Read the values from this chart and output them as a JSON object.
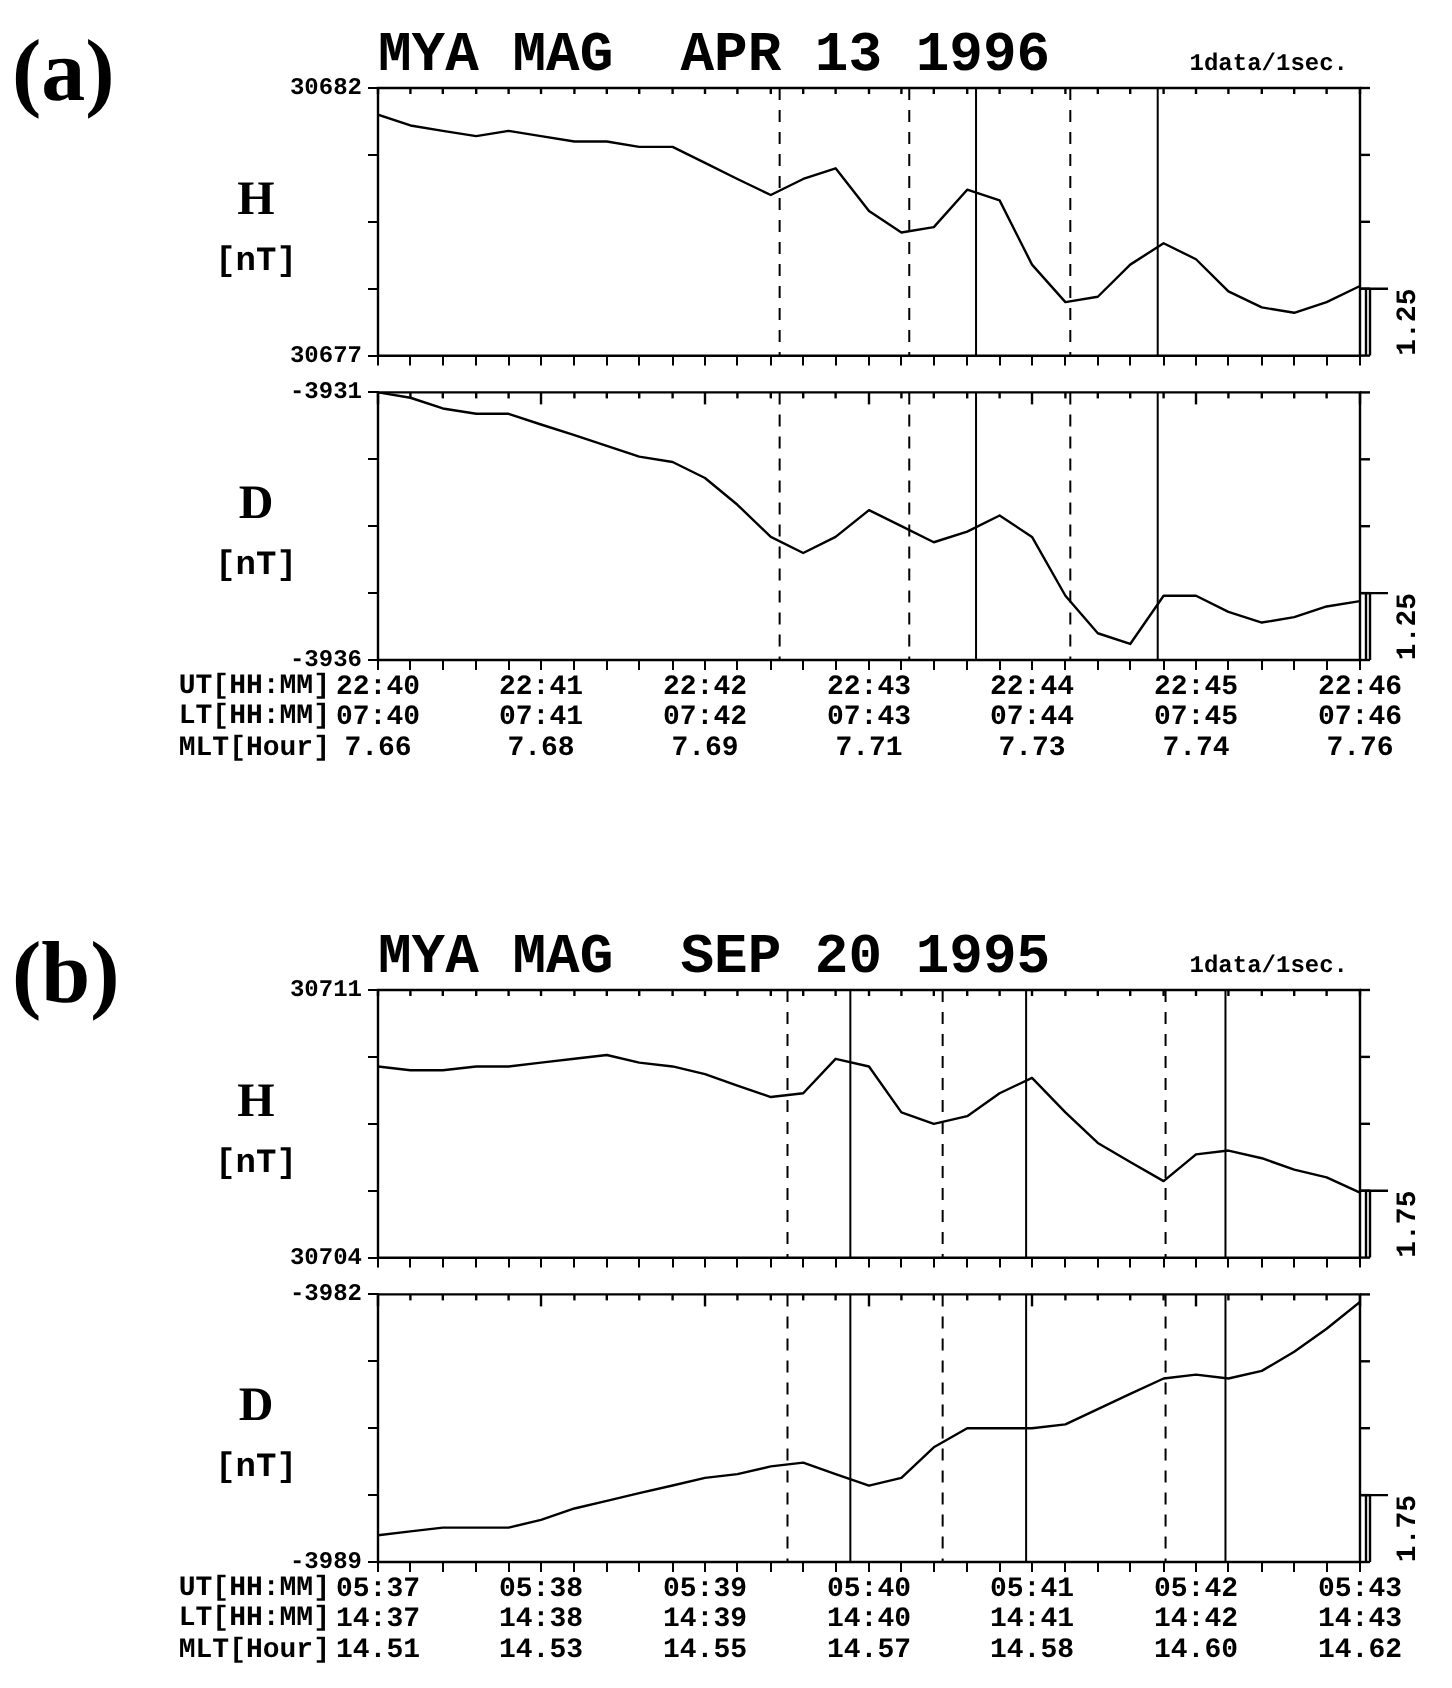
{
  "chart_data": [
    {
      "type": "line",
      "title": "MYA MAG  APR 13 1996",
      "subtitle": "1data/1sec.",
      "ylabel": "H [nT]",
      "annotations": [
        "(a)",
        "1.25"
      ],
      "color": "#000000",
      "tick_labels": "y",
      "x": [
        22.6667,
        22.67,
        22.6733,
        22.6767,
        22.68,
        22.6833,
        22.6867,
        22.69,
        22.6933,
        22.6967,
        22.7,
        22.7033,
        22.7067,
        22.71,
        22.7133,
        22.7167,
        22.72,
        22.7233,
        22.7267,
        22.73,
        22.7333,
        22.7367,
        22.74,
        22.7433,
        22.7467,
        22.75,
        22.7533,
        22.7567,
        22.76,
        22.7633,
        22.7667
      ],
      "values": [
        30681.5,
        30681.3,
        30681.2,
        30681.1,
        30681.2,
        30681.1,
        30681.0,
        30681.0,
        30680.9,
        30680.9,
        30680.6,
        30680.3,
        30680.0,
        30680.3,
        30680.5,
        30679.7,
        30679.3,
        30679.4,
        30680.1,
        30679.9,
        30678.7,
        30678.0,
        30678.1,
        30678.7,
        30679.1,
        30678.8,
        30678.2,
        30677.9,
        30677.8,
        30678.0,
        30678.3
      ],
      "xlim": [
        22.6667,
        22.7667
      ],
      "xticks": [
        {
          "value": 22.6667,
          "label": null
        },
        {
          "value": 22.67,
          "label": null
        },
        {
          "value": 22.6733,
          "label": null
        },
        {
          "value": 22.6767,
          "label": null
        },
        {
          "value": 22.68,
          "label": null
        },
        {
          "value": 22.6833,
          "label": null
        },
        {
          "value": 22.6867,
          "label": null
        },
        {
          "value": 22.69,
          "label": null
        },
        {
          "value": 22.6933,
          "label": null
        },
        {
          "value": 22.6967,
          "label": null
        },
        {
          "value": 22.7,
          "label": null
        },
        {
          "value": 22.7033,
          "label": null
        },
        {
          "value": 22.7067,
          "label": null
        },
        {
          "value": 22.71,
          "label": null
        },
        {
          "value": 22.7133,
          "label": null
        },
        {
          "value": 22.7167,
          "label": null
        },
        {
          "value": 22.72,
          "label": null
        },
        {
          "value": 22.7233,
          "label": null
        },
        {
          "value": 22.7267,
          "label": null
        },
        {
          "value": 22.73,
          "label": null
        },
        {
          "value": 22.7333,
          "label": null
        },
        {
          "value": 22.7367,
          "label": null
        },
        {
          "value": 22.74,
          "label": null
        },
        {
          "value": 22.7433,
          "label": null
        },
        {
          "value": 22.7467,
          "label": null
        },
        {
          "value": 22.75,
          "label": null
        },
        {
          "value": 22.7533,
          "label": null
        },
        {
          "value": 22.7567,
          "label": null
        },
        {
          "value": 22.76,
          "label": null
        },
        {
          "value": 22.7633,
          "label": null
        },
        {
          "value": 22.7667,
          "label": null
        }
      ],
      "ylim": [
        30677,
        30682
      ],
      "yticks": [
        30677,
        {
          "value": 30678.25,
          "label": null
        },
        {
          "value": 30679.5,
          "label": null
        },
        {
          "value": 30680.75,
          "label": null
        },
        30682
      ],
      "ref_lines": [
        {
          "axis": "x",
          "value": 22.7076,
          "line_style": "dashed"
        },
        {
          "axis": "x",
          "value": 22.7208,
          "line_style": "dashed"
        },
        {
          "axis": "x",
          "value": 22.7276,
          "line_style": "solid"
        },
        {
          "axis": "x",
          "value": 22.7372,
          "line_style": "dashed"
        },
        {
          "axis": "x",
          "value": 22.7461,
          "line_style": "solid"
        }
      ]
    },
    {
      "type": "line",
      "ylabel": "D [nT]",
      "xlabel": "UT[HH:MM]",
      "x2label": "LT[HH:MM]",
      "color": "#000000",
      "annotations": [
        "MLT[Hour]",
        "7.66",
        "7.68",
        "7.69",
        "7.71",
        "7.73",
        "7.74",
        "7.76",
        "1.25"
      ],
      "x": [
        22.6667,
        22.67,
        22.6733,
        22.6767,
        22.68,
        22.6833,
        22.6867,
        22.69,
        22.6933,
        22.6967,
        22.7,
        22.7033,
        22.7067,
        22.71,
        22.7133,
        22.7167,
        22.72,
        22.7233,
        22.7267,
        22.73,
        22.7333,
        22.7367,
        22.74,
        22.7433,
        22.7467,
        22.75,
        22.7533,
        22.7567,
        22.76,
        22.7633,
        22.7667
      ],
      "values": [
        -3931.0,
        -3931.1,
        -3931.3,
        -3931.4,
        -3931.4,
        -3931.6,
        -3931.8,
        -3932.0,
        -3932.2,
        -3932.3,
        -3932.6,
        -3933.1,
        -3933.7,
        -3934.0,
        -3933.7,
        -3933.2,
        -3933.5,
        -3933.8,
        -3933.6,
        -3933.3,
        -3933.7,
        -3934.8,
        -3935.5,
        -3935.7,
        -3934.8,
        -3934.8,
        -3935.1,
        -3935.3,
        -3935.2,
        -3935.0,
        -3934.9
      ],
      "xlim": [
        22.6667,
        22.7667
      ],
      "xticks": [
        {
          "value": 22.6667,
          "label": "22:40"
        },
        {
          "value": 22.67,
          "label": null
        },
        {
          "value": 22.6733,
          "label": null
        },
        {
          "value": 22.6767,
          "label": null
        },
        {
          "value": 22.68,
          "label": null
        },
        {
          "value": 22.6833,
          "label": "22:41"
        },
        {
          "value": 22.6867,
          "label": null
        },
        {
          "value": 22.69,
          "label": null
        },
        {
          "value": 22.6933,
          "label": null
        },
        {
          "value": 22.6967,
          "label": null
        },
        {
          "value": 22.7,
          "label": "22:42"
        },
        {
          "value": 22.7033,
          "label": null
        },
        {
          "value": 22.7067,
          "label": null
        },
        {
          "value": 22.71,
          "label": null
        },
        {
          "value": 22.7133,
          "label": null
        },
        {
          "value": 22.7167,
          "label": "22:43"
        },
        {
          "value": 22.72,
          "label": null
        },
        {
          "value": 22.7233,
          "label": null
        },
        {
          "value": 22.7267,
          "label": null
        },
        {
          "value": 22.73,
          "label": null
        },
        {
          "value": 22.7333,
          "label": "22:44"
        },
        {
          "value": 22.7367,
          "label": null
        },
        {
          "value": 22.74,
          "label": null
        },
        {
          "value": 22.7433,
          "label": null
        },
        {
          "value": 22.7467,
          "label": null
        },
        {
          "value": 22.75,
          "label": "22:45"
        },
        {
          "value": 22.7533,
          "label": null
        },
        {
          "value": 22.7567,
          "label": null
        },
        {
          "value": 22.76,
          "label": null
        },
        {
          "value": 22.7633,
          "label": null
        },
        {
          "value": 22.7667,
          "label": "22:46"
        }
      ],
      "x2lim": [
        7.6667,
        7.7667
      ],
      "x2ticks": [
        {
          "value": 7.6667,
          "label": "07:40"
        },
        {
          "value": 7.6833,
          "label": "07:41"
        },
        {
          "value": 7.7,
          "label": "07:42"
        },
        {
          "value": 7.7167,
          "label": "07:43"
        },
        {
          "value": 7.7333,
          "label": "07:44"
        },
        {
          "value": 7.75,
          "label": "07:45"
        },
        {
          "value": 7.7667,
          "label": "07:46"
        }
      ],
      "ylim": [
        -3936,
        -3931
      ],
      "yticks": [
        -3936,
        {
          "value": -3934.75,
          "label": null
        },
        {
          "value": -3933.5,
          "label": null
        },
        {
          "value": -3932.25,
          "label": null
        },
        -3931
      ],
      "ref_lines": [
        {
          "axis": "x",
          "value": 22.7076,
          "line_style": "dashed"
        },
        {
          "axis": "x",
          "value": 22.7208,
          "line_style": "dashed"
        },
        {
          "axis": "x",
          "value": 22.7276,
          "line_style": "solid"
        },
        {
          "axis": "x",
          "value": 22.7372,
          "line_style": "dashed"
        },
        {
          "axis": "x",
          "value": 22.7461,
          "line_style": "solid"
        }
      ]
    },
    {
      "type": "line",
      "title": "MYA MAG  SEP 20 1995",
      "subtitle": "1data/1sec.",
      "ylabel": "H [nT]",
      "annotations": [
        "(b)",
        "1.75"
      ],
      "color": "#000000",
      "tick_labels": "y",
      "x": [
        5.6167,
        5.62,
        5.6233,
        5.6267,
        5.63,
        5.6333,
        5.6367,
        5.64,
        5.6433,
        5.6467,
        5.65,
        5.6533,
        5.6567,
        5.66,
        5.6633,
        5.6667,
        5.67,
        5.6733,
        5.6767,
        5.68,
        5.6833,
        5.6867,
        5.69,
        5.6933,
        5.6967,
        5.7,
        5.7033,
        5.7067,
        5.71,
        5.7133,
        5.7167
      ],
      "values": [
        30709.0,
        30708.9,
        30708.9,
        30709.0,
        30709.0,
        30709.1,
        30709.2,
        30709.3,
        30709.1,
        30709.0,
        30708.8,
        30708.5,
        30708.2,
        30708.3,
        30709.2,
        30709.0,
        30707.8,
        30707.5,
        30707.7,
        30708.3,
        30708.7,
        30707.8,
        30707.0,
        30706.5,
        30706.0,
        30706.7,
        30706.8,
        30706.6,
        30706.3,
        30706.1,
        30705.7
      ],
      "xlim": [
        5.6167,
        5.7167
      ],
      "xticks": [
        {
          "value": 5.6167,
          "label": null
        },
        {
          "value": 5.62,
          "label": null
        },
        {
          "value": 5.6233,
          "label": null
        },
        {
          "value": 5.6267,
          "label": null
        },
        {
          "value": 5.63,
          "label": null
        },
        {
          "value": 5.6333,
          "label": null
        },
        {
          "value": 5.6367,
          "label": null
        },
        {
          "value": 5.64,
          "label": null
        },
        {
          "value": 5.6433,
          "label": null
        },
        {
          "value": 5.6467,
          "label": null
        },
        {
          "value": 5.65,
          "label": null
        },
        {
          "value": 5.6533,
          "label": null
        },
        {
          "value": 5.6567,
          "label": null
        },
        {
          "value": 5.66,
          "label": null
        },
        {
          "value": 5.6633,
          "label": null
        },
        {
          "value": 5.6667,
          "label": null
        },
        {
          "value": 5.67,
          "label": null
        },
        {
          "value": 5.6733,
          "label": null
        },
        {
          "value": 5.6767,
          "label": null
        },
        {
          "value": 5.68,
          "label": null
        },
        {
          "value": 5.6833,
          "label": null
        },
        {
          "value": 5.6867,
          "label": null
        },
        {
          "value": 5.69,
          "label": null
        },
        {
          "value": 5.6933,
          "label": null
        },
        {
          "value": 5.6967,
          "label": null
        },
        {
          "value": 5.7,
          "label": null
        },
        {
          "value": 5.7033,
          "label": null
        },
        {
          "value": 5.7067,
          "label": null
        },
        {
          "value": 5.71,
          "label": null
        },
        {
          "value": 5.7133,
          "label": null
        },
        {
          "value": 5.7167,
          "label": null
        }
      ],
      "ylim": [
        30704,
        30711
      ],
      "yticks": [
        30704,
        {
          "value": 30705.75,
          "label": null
        },
        {
          "value": 30707.5,
          "label": null
        },
        {
          "value": 30709.25,
          "label": null
        },
        30711
      ],
      "ref_lines": [
        {
          "axis": "x",
          "value": 5.6584,
          "line_style": "dashed"
        },
        {
          "axis": "x",
          "value": 5.6648,
          "line_style": "solid"
        },
        {
          "axis": "x",
          "value": 5.6742,
          "line_style": "dashed"
        },
        {
          "axis": "x",
          "value": 5.6827,
          "line_style": "solid"
        },
        {
          "axis": "x",
          "value": 5.6969,
          "line_style": "dashed"
        },
        {
          "axis": "x",
          "value": 5.703,
          "line_style": "solid"
        }
      ]
    },
    {
      "type": "line",
      "ylabel": "D [nT]",
      "xlabel": "UT[HH:MM]",
      "x2label": "LT[HH:MM]",
      "color": "#000000",
      "annotations": [
        "MLT[Hour]",
        "14.51",
        "14.53",
        "14.55",
        "14.57",
        "14.58",
        "14.60",
        "14.62",
        "1.75"
      ],
      "x": [
        5.6167,
        5.62,
        5.6233,
        5.6267,
        5.63,
        5.6333,
        5.6367,
        5.64,
        5.6433,
        5.6467,
        5.65,
        5.6533,
        5.6567,
        5.66,
        5.6633,
        5.6667,
        5.67,
        5.6733,
        5.6767,
        5.68,
        5.6833,
        5.6867,
        5.69,
        5.6933,
        5.6967,
        5.7,
        5.7033,
        5.7067,
        5.71,
        5.7133,
        5.7167
      ],
      "values": [
        -3988.3,
        -3988.2,
        -3988.1,
        -3988.1,
        -3988.1,
        -3987.9,
        -3987.6,
        -3987.4,
        -3987.2,
        -3987.0,
        -3986.8,
        -3986.7,
        -3986.5,
        -3986.4,
        -3986.7,
        -3987.0,
        -3986.8,
        -3986.0,
        -3985.5,
        -3985.5,
        -3985.5,
        -3985.4,
        -3985.0,
        -3984.6,
        -3984.2,
        -3984.1,
        -3984.2,
        -3984.0,
        -3983.5,
        -3982.9,
        -3982.2
      ],
      "xlim": [
        5.6167,
        5.7167
      ],
      "xticks": [
        {
          "value": 5.6167,
          "label": "05:37"
        },
        {
          "value": 5.62,
          "label": null
        },
        {
          "value": 5.6233,
          "label": null
        },
        {
          "value": 5.6267,
          "label": null
        },
        {
          "value": 5.63,
          "label": null
        },
        {
          "value": 5.6333,
          "label": "05:38"
        },
        {
          "value": 5.6367,
          "label": null
        },
        {
          "value": 5.64,
          "label": null
        },
        {
          "value": 5.6433,
          "label": null
        },
        {
          "value": 5.6467,
          "label": null
        },
        {
          "value": 5.65,
          "label": "05:39"
        },
        {
          "value": 5.6533,
          "label": null
        },
        {
          "value": 5.6567,
          "label": null
        },
        {
          "value": 5.66,
          "label": null
        },
        {
          "value": 5.6633,
          "label": null
        },
        {
          "value": 5.6667,
          "label": "05:40"
        },
        {
          "value": 5.67,
          "label": null
        },
        {
          "value": 5.6733,
          "label": null
        },
        {
          "value": 5.6767,
          "label": null
        },
        {
          "value": 5.68,
          "label": null
        },
        {
          "value": 5.6833,
          "label": "05:41"
        },
        {
          "value": 5.6867,
          "label": null
        },
        {
          "value": 5.69,
          "label": null
        },
        {
          "value": 5.6933,
          "label": null
        },
        {
          "value": 5.6967,
          "label": null
        },
        {
          "value": 5.7,
          "label": "05:42"
        },
        {
          "value": 5.7033,
          "label": null
        },
        {
          "value": 5.7067,
          "label": null
        },
        {
          "value": 5.71,
          "label": null
        },
        {
          "value": 5.7133,
          "label": null
        },
        {
          "value": 5.7167,
          "label": "05:43"
        }
      ],
      "x2lim": [
        14.6167,
        14.7167
      ],
      "x2ticks": [
        {
          "value": 14.6167,
          "label": "14:37"
        },
        {
          "value": 14.6333,
          "label": "14:38"
        },
        {
          "value": 14.65,
          "label": "14:39"
        },
        {
          "value": 14.6667,
          "label": "14:40"
        },
        {
          "value": 14.6833,
          "label": "14:41"
        },
        {
          "value": 14.7,
          "label": "14:42"
        },
        {
          "value": 14.7167,
          "label": "14:43"
        }
      ],
      "ylim": [
        -3989,
        -3982
      ],
      "yticks": [
        -3989,
        {
          "value": -3987.25,
          "label": null
        },
        {
          "value": -3985.5,
          "label": null
        },
        {
          "value": -3983.75,
          "label": null
        },
        -3982
      ],
      "ref_lines": [
        {
          "axis": "x",
          "value": 5.6584,
          "line_style": "dashed"
        },
        {
          "axis": "x",
          "value": 5.6648,
          "line_style": "solid"
        },
        {
          "axis": "x",
          "value": 5.6742,
          "line_style": "dashed"
        },
        {
          "axis": "x",
          "value": 5.6827,
          "line_style": "solid"
        },
        {
          "axis": "x",
          "value": 5.6969,
          "line_style": "dashed"
        },
        {
          "axis": "x",
          "value": 5.703,
          "line_style": "solid"
        }
      ]
    }
  ]
}
